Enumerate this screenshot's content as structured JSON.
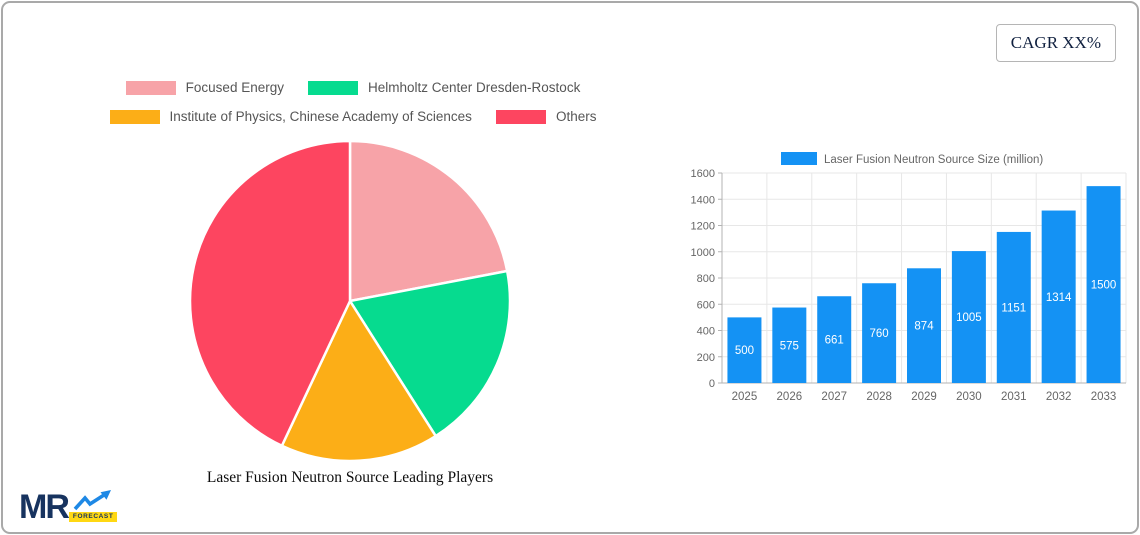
{
  "canvas": {
    "background": "#ffffff",
    "border_color": "#a9a9a9"
  },
  "cagr_badge": {
    "label": "CAGR XX%"
  },
  "watermark": {
    "brand": "MR",
    "sub": "FORECAST"
  },
  "colors": {
    "bar_blue": "#1492f4",
    "axis_text": "#666666",
    "legend_text": "#565656",
    "gridline": "#e7e7e7",
    "axis_line": "#b3b3b3"
  },
  "chart_data": [
    {
      "type": "pie",
      "title": "Laser Fusion Neutron Source Leading Players",
      "labels": [
        "Focused Energy",
        "Helmholtz Center Dresden-Rostock",
        "Institute of Physics, Chinese Academy of Sciences",
        "Others"
      ],
      "values": [
        22,
        19,
        16,
        43
      ],
      "unit": "percent (estimated from slice angles)",
      "colors": [
        "#f7a3a8",
        "#06db8f",
        "#fcae17",
        "#fd4560"
      ],
      "start_angle_deg": -90,
      "direction": "clockwise",
      "slice_border_color": "#ffffff",
      "legend_position": "top"
    },
    {
      "type": "bar",
      "legend": "Laser Fusion Neutron Source Size (million)",
      "categories": [
        "2025",
        "2026",
        "2027",
        "2028",
        "2029",
        "2030",
        "2031",
        "2032",
        "2033"
      ],
      "values": [
        500,
        575,
        661,
        760,
        874,
        1005,
        1151,
        1314,
        1500
      ],
      "bar_color": "#1492f4",
      "value_label_color": "#ffffff",
      "xlabel": "",
      "ylabel": "",
      "ylim": [
        0,
        1600
      ],
      "y_ticks": [
        0,
        200,
        400,
        600,
        800,
        1000,
        1200,
        1400,
        1600
      ],
      "grid": true,
      "legend_position": "top"
    }
  ]
}
